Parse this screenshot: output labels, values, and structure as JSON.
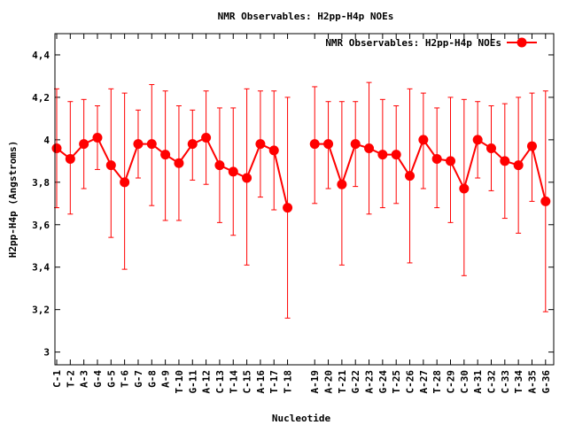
{
  "chart_data": {
    "type": "line",
    "title": "NMR Observables: H2pp-H4p NOEs",
    "xlabel": "Nucleotide",
    "ylabel": "H2pp-H4p (Angstroms)",
    "ylim": [
      2.94,
      4.5
    ],
    "yticks": [
      3,
      3.2,
      3.4,
      3.6,
      3.8,
      4,
      4.2,
      4.4
    ],
    "ytick_labels": [
      "3",
      "3,2",
      "3,4",
      "3,6",
      "3,8",
      "4",
      "4,2",
      "4,4"
    ],
    "grid": false,
    "legend": {
      "label": "NMR Observables: H2pp-H4p NOEs",
      "placement": "top-right"
    },
    "series_color": "#ff0000",
    "categories": [
      "C-1",
      "T-2",
      "A-3",
      "G-4",
      "G-5",
      "T-6",
      "G-7",
      "G-8",
      "A-9",
      "T-10",
      "G-11",
      "A-12",
      "C-13",
      "T-14",
      "C-15",
      "A-16",
      "T-17",
      "T-18",
      "A-19",
      "A-20",
      "T-21",
      "G-22",
      "A-23",
      "G-24",
      "T-25",
      "C-26",
      "A-27",
      "T-28",
      "C-29",
      "C-30",
      "A-31",
      "C-32",
      "C-33",
      "T-34",
      "A-35",
      "G-36"
    ],
    "x": [
      0,
      1,
      2,
      3,
      4,
      5,
      6,
      7,
      8,
      9,
      10,
      11,
      12,
      13,
      14,
      15,
      16,
      17,
      19,
      20,
      21,
      22,
      23,
      24,
      25,
      26,
      27,
      28,
      29,
      30,
      31,
      32,
      33,
      34,
      35,
      36
    ],
    "xlim": [
      -0.13,
      36.6
    ],
    "values": [
      3.96,
      3.91,
      3.98,
      4.01,
      3.88,
      3.8,
      3.98,
      3.98,
      3.93,
      3.89,
      3.98,
      4.01,
      3.88,
      3.85,
      3.82,
      3.98,
      3.95,
      3.68,
      3.98,
      3.98,
      3.79,
      3.98,
      3.96,
      3.93,
      3.93,
      3.83,
      4.0,
      3.91,
      3.9,
      3.77,
      4.0,
      3.96,
      3.9,
      3.88,
      3.97,
      3.71
    ],
    "err_low": [
      3.68,
      3.65,
      3.77,
      3.86,
      3.54,
      3.39,
      3.82,
      3.69,
      3.62,
      3.62,
      3.81,
      3.79,
      3.61,
      3.55,
      3.41,
      3.73,
      3.67,
      3.16,
      3.7,
      3.77,
      3.41,
      3.78,
      3.65,
      3.68,
      3.7,
      3.42,
      3.77,
      3.68,
      3.61,
      3.36,
      3.82,
      3.76,
      3.63,
      3.56,
      3.71,
      3.19
    ],
    "err_high": [
      4.24,
      4.18,
      4.19,
      4.16,
      4.24,
      4.22,
      4.14,
      4.26,
      4.23,
      4.16,
      4.14,
      4.23,
      4.15,
      4.15,
      4.24,
      4.23,
      4.23,
      4.2,
      4.25,
      4.18,
      4.18,
      4.18,
      4.27,
      4.19,
      4.16,
      4.24,
      4.22,
      4.15,
      4.2,
      4.19,
      4.18,
      4.16,
      4.17,
      4.2,
      4.22,
      4.23
    ]
  }
}
